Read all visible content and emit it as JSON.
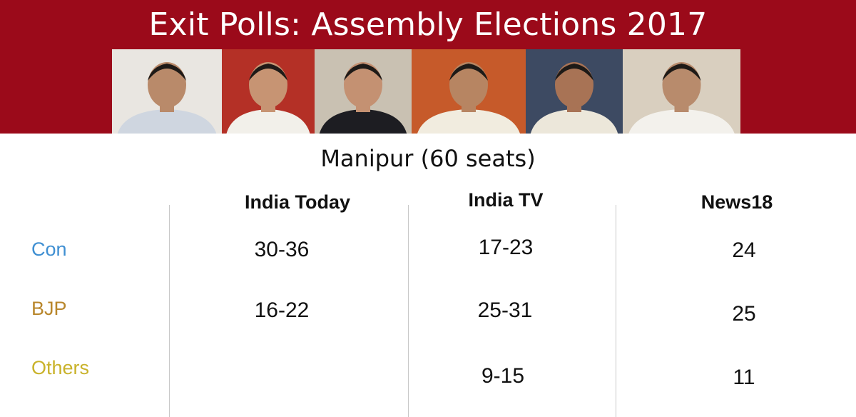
{
  "header": {
    "title": "Exit Polls: Assembly Elections 2017"
  },
  "photos": [
    {
      "name": "leader-photo-1",
      "bg": "#e9e6e1",
      "shirt": "#cfd6e0",
      "skin": "#b98a6a"
    },
    {
      "name": "leader-photo-2",
      "bg": "#b43026",
      "shirt": "#f2f0ea",
      "skin": "#c79473"
    },
    {
      "name": "leader-photo-3",
      "bg": "#c9c1b2",
      "shirt": "#1d1d22",
      "skin": "#c49172"
    },
    {
      "name": "leader-photo-4",
      "bg": "#c65a2a",
      "shirt": "#f1ecdf",
      "skin": "#b78562"
    },
    {
      "name": "leader-photo-5",
      "bg": "#3d4a62",
      "shirt": "#ece7da",
      "skin": "#a87355"
    },
    {
      "name": "leader-photo-6",
      "bg": "#d9cfbf",
      "shirt": "#f3f1ec",
      "skin": "#b88b6c"
    }
  ],
  "chart_data": {
    "type": "table",
    "title": "Manipur (60 seats)",
    "columns": [
      "India Today",
      "India TV",
      "News18"
    ],
    "rows": [
      {
        "label": "Con",
        "color": "#3f8fd2",
        "values": [
          "30-36",
          "17-23",
          "24"
        ]
      },
      {
        "label": "BJP",
        "color": "#b8862b",
        "values": [
          "16-22",
          "25-31",
          "25"
        ]
      },
      {
        "label": "Others",
        "color": "#c9b22a",
        "values": [
          "",
          "9-15",
          "11"
        ]
      }
    ]
  }
}
